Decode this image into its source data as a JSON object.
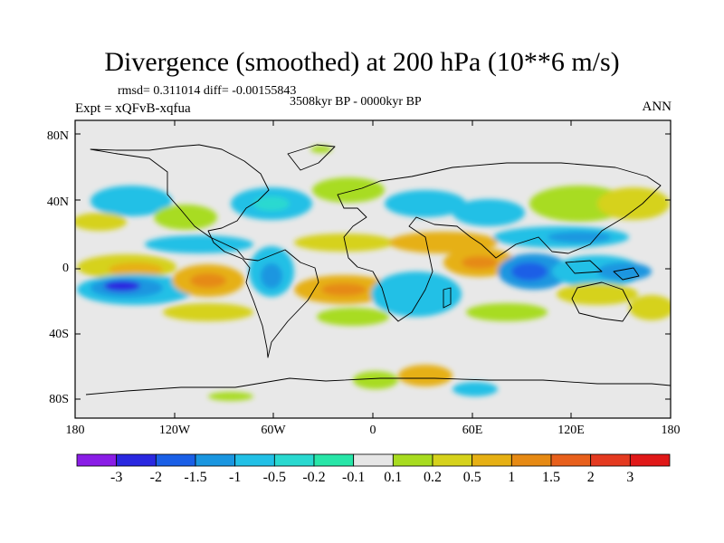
{
  "title": "Divergence (smoothed) at 200 hPa (10**6 m/s)",
  "stats": "rmsd= 0.311014 diff= -0.00155843",
  "period": "3508kyr BP - 0000kyr BP",
  "experiment": "Expt = xQFvB-xqfua",
  "season": "ANN",
  "lat_ticks": [
    "80N",
    "40N",
    "0",
    "40S",
    "80S"
  ],
  "lon_ticks": [
    "180",
    "120W",
    "60W",
    "0",
    "60E",
    "120E",
    "180"
  ],
  "colorbar": {
    "labels": [
      "-3",
      "-2",
      "-1.5",
      "-1",
      "-0.5",
      "-0.2",
      "-0.1",
      "0.1",
      "0.2",
      "0.5",
      "1",
      "1.5",
      "2",
      "3"
    ],
    "colors": [
      "#8a1de6",
      "#2a28e0",
      "#1a5fe6",
      "#1a96e0",
      "#22c0e6",
      "#2ad9d0",
      "#28e6a8",
      "#e6e6e6",
      "#a8dc20",
      "#d6d21c",
      "#e6b014",
      "#e68a14",
      "#e8601c",
      "#e43a20",
      "#e01818"
    ]
  }
}
